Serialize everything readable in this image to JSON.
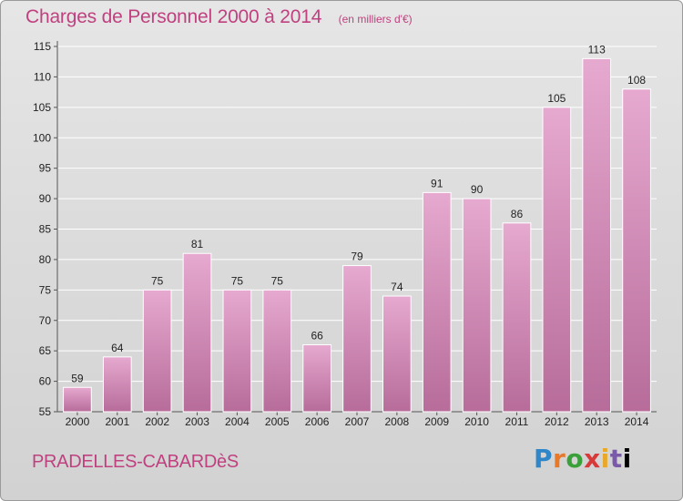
{
  "header": {
    "title": "Charges de Personnel 2000 à 2014",
    "subtitle": "(en milliers d'€)"
  },
  "footer": {
    "commune": "PRADELLES-CABARDèS",
    "logo_text": "Proxiti"
  },
  "colors": {
    "title": "#c0417f",
    "bar_top": "#e6a9cf",
    "bar_bottom": "#b76c9a"
  },
  "chart_data": {
    "type": "bar",
    "title": "Charges de Personnel 2000 à 2014",
    "subtitle": "(en milliers d'€)",
    "categories": [
      "2000",
      "2001",
      "2002",
      "2003",
      "2004",
      "2005",
      "2006",
      "2007",
      "2008",
      "2009",
      "2010",
      "2011",
      "2012",
      "2013",
      "2014"
    ],
    "values": [
      59,
      64,
      75,
      81,
      75,
      75,
      66,
      79,
      74,
      91,
      90,
      86,
      105,
      113,
      108
    ],
    "ylim": [
      55,
      115
    ],
    "yticks": [
      55,
      60,
      65,
      70,
      75,
      80,
      85,
      90,
      95,
      100,
      105,
      110,
      115
    ],
    "grid": true,
    "data_labels": true
  }
}
